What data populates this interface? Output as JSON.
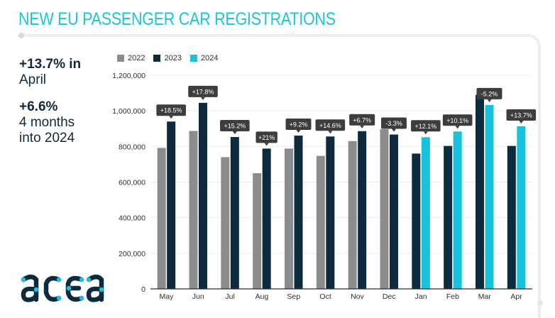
{
  "header": {
    "title": "NEW EU PASSENGER CAR REGISTRATIONS"
  },
  "stats": {
    "april_change": "+13.7% in",
    "april_label": "April",
    "ytd_change": "+6.6%",
    "ytd_label_line1": "4 months",
    "ytd_label_line2": "into 2024"
  },
  "logo": {
    "text": "acea",
    "icon": "acea-logo"
  },
  "colors": {
    "accent": "#1cc5de",
    "series_2022": "#8a8c8e",
    "series_2023": "#0c2b3e",
    "series_2024": "#17c3dc",
    "label_bg": "#3d3d3f",
    "text_dark": "#14273a"
  },
  "chart_data": {
    "type": "bar",
    "title": "NEW EU PASSENGER CAR REGISTRATIONS",
    "xlabel": "",
    "ylabel": "",
    "ylim": [
      0,
      1200000
    ],
    "yticks": [
      0,
      200000,
      400000,
      600000,
      800000,
      1000000,
      1200000
    ],
    "ytick_labels": [
      "0",
      "200,000",
      "400,000",
      "600,000",
      "800,000",
      "1,000,000",
      "1,200,000"
    ],
    "grid": true,
    "legend_position": "top-left",
    "categories": [
      "May",
      "Jun",
      "Jul",
      "Aug",
      "Sep",
      "Oct",
      "Nov",
      "Dec",
      "Jan",
      "Feb",
      "Mar",
      "Apr"
    ],
    "series": [
      {
        "name": "2022",
        "values": [
          792000,
          887000,
          740000,
          650000,
          788000,
          747000,
          830000,
          897000,
          null,
          null,
          null,
          null
        ]
      },
      {
        "name": "2023",
        "values": [
          940000,
          1045000,
          853000,
          788000,
          861000,
          856000,
          886000,
          867000,
          760000,
          803000,
          1090000,
          803000
        ]
      },
      {
        "name": "2024",
        "values": [
          null,
          null,
          null,
          null,
          null,
          null,
          null,
          null,
          852000,
          884000,
          1033000,
          913000
        ]
      }
    ],
    "annotations": [
      "+18.5%",
      "+17.8%",
      "+15.2%",
      "+21%",
      "+9.2%",
      "+14.6%",
      "+6.7%",
      "-3.3%",
      "+12.1%",
      "+10.1%",
      "-5.2%",
      "+13.7%"
    ]
  }
}
